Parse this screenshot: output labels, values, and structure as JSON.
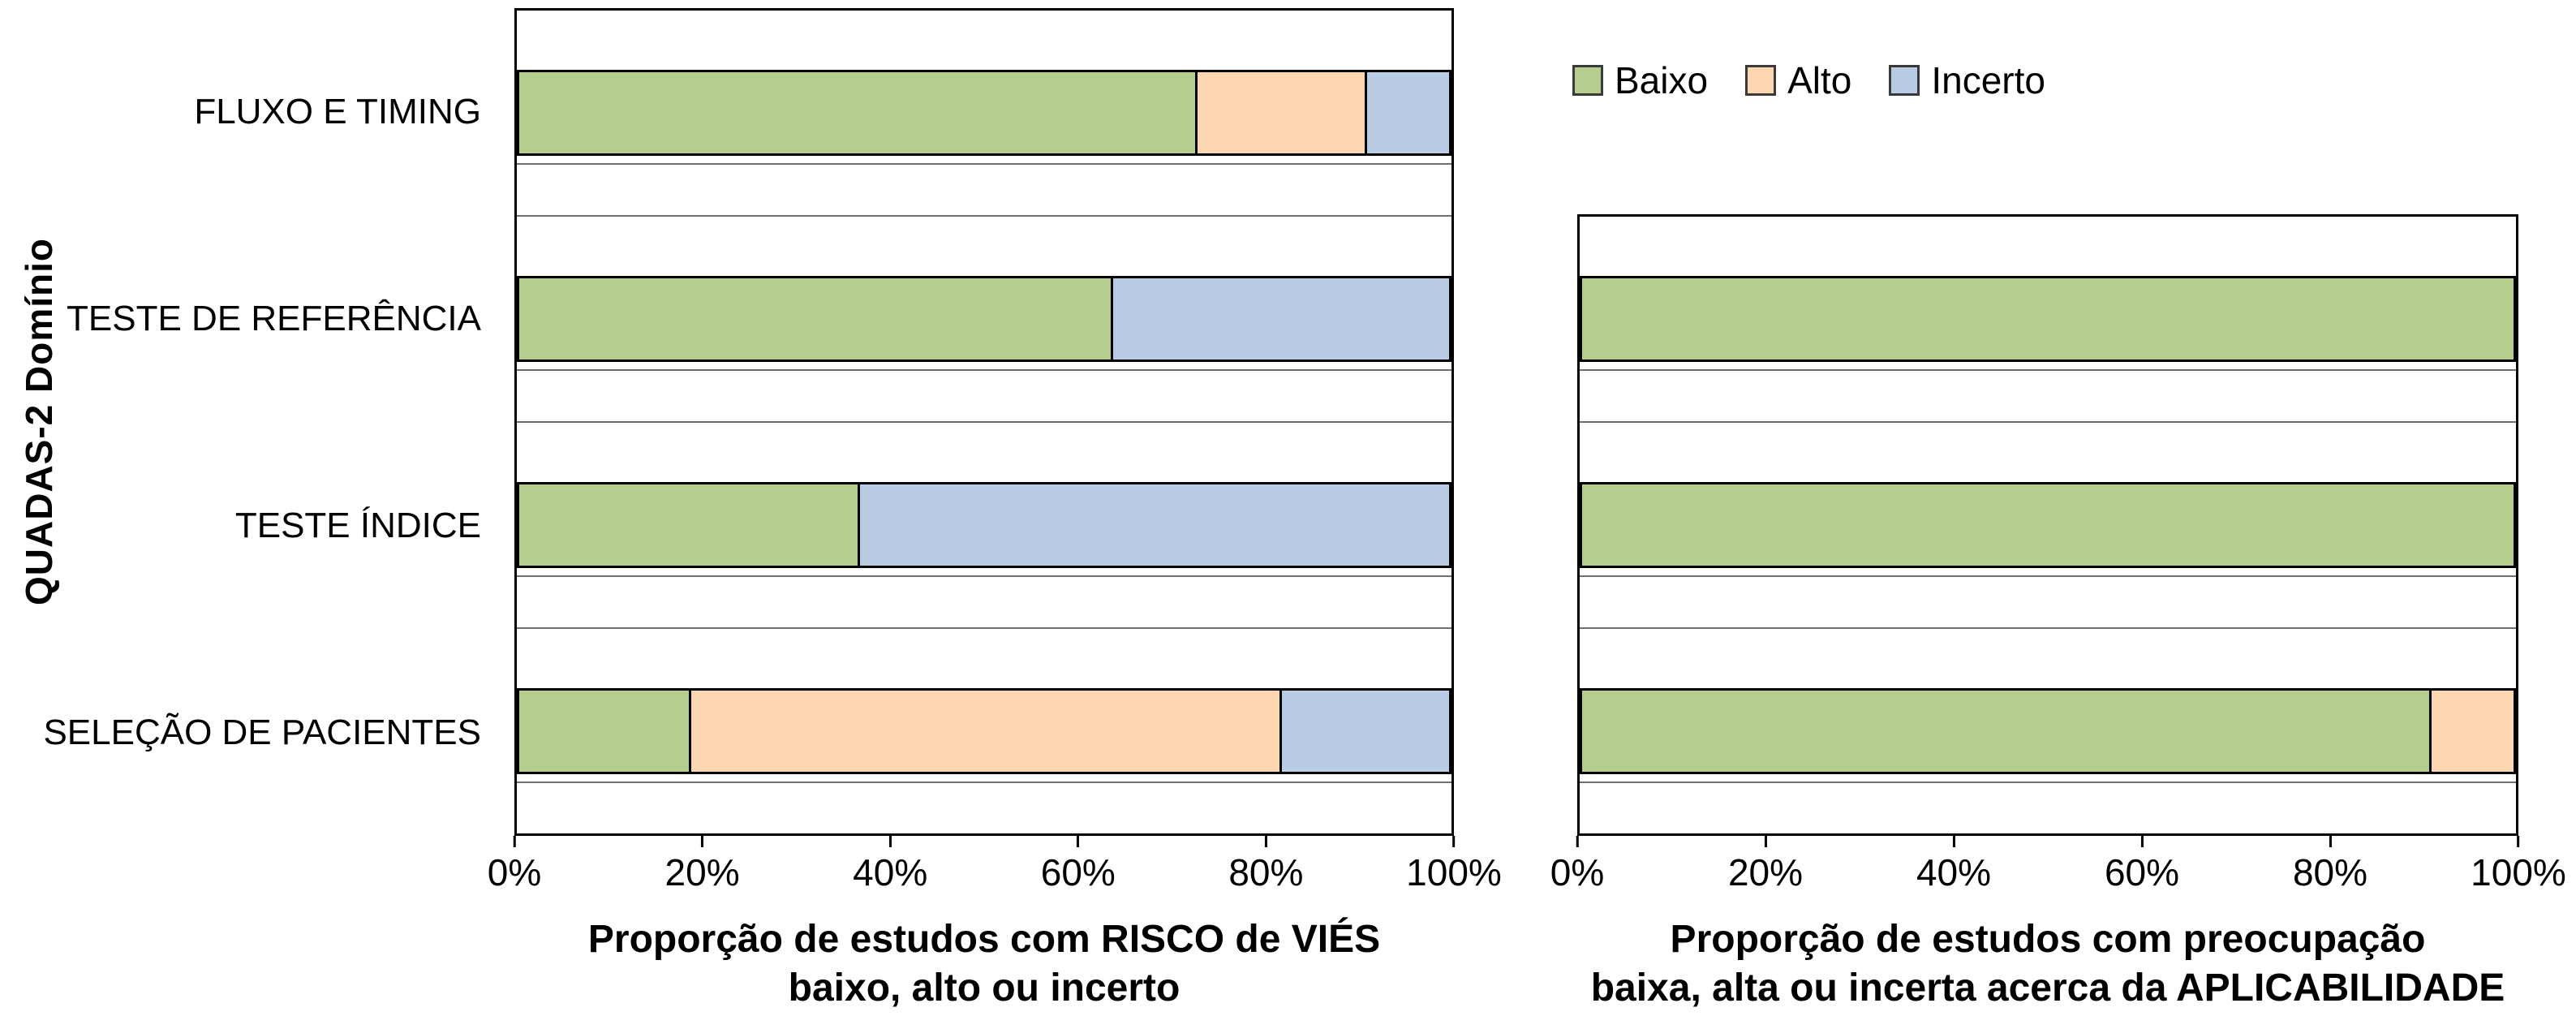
{
  "colors": {
    "baixo": "#b6cd90",
    "alto": "#fcd6b0",
    "incerto": "#b8cce4",
    "bar_border": "#000000",
    "gridline": "#6e6e6e"
  },
  "chart_data": [
    {
      "type": "bar",
      "orientation": "horizontal",
      "stacked": true,
      "title": "",
      "ylabel": "QUADAS-2 Domínio",
      "xlabel_line1": "Proporção de estudos com RISCO de VIÉS",
      "xlabel_line2": "baixo, alto ou incerto",
      "categories": [
        "FLUXO E TIMING",
        "TESTE DE REFERÊNCIA",
        "TESTE ÍNDICE",
        "SELEÇÃO DE PACIENTES"
      ],
      "series": [
        {
          "name": "Baixo",
          "values": [
            72.7,
            63.6,
            36.4,
            18.2
          ]
        },
        {
          "name": "Alto",
          "values": [
            18.2,
            0,
            0,
            63.6
          ]
        },
        {
          "name": "Incerto",
          "values": [
            9.1,
            36.4,
            63.6,
            18.2
          ]
        }
      ],
      "xlim": [
        0,
        100
      ],
      "xticks": [
        "0%",
        "20%",
        "40%",
        "60%",
        "80%",
        "100%"
      ],
      "grid": "horizontal",
      "legend_position": "top-right"
    },
    {
      "type": "bar",
      "orientation": "horizontal",
      "stacked": true,
      "title": "",
      "xlabel_line1": "Proporção de estudos com preocupação",
      "xlabel_line2": "baixa, alta ou incerta acerca da APLICABILIDADE",
      "categories": [
        "TESTE DE REFERÊNCIA",
        "TESTE ÍNDICE",
        "SELEÇÃO DE PACIENTES"
      ],
      "series": [
        {
          "name": "Baixo",
          "values": [
            100,
            100,
            90.9
          ]
        },
        {
          "name": "Alto",
          "values": [
            0,
            0,
            9.1
          ]
        },
        {
          "name": "Incerto",
          "values": [
            0,
            0,
            0
          ]
        }
      ],
      "xlim": [
        0,
        100
      ],
      "xticks": [
        "0%",
        "20%",
        "40%",
        "60%",
        "80%",
        "100%"
      ],
      "grid": "horizontal"
    }
  ]
}
